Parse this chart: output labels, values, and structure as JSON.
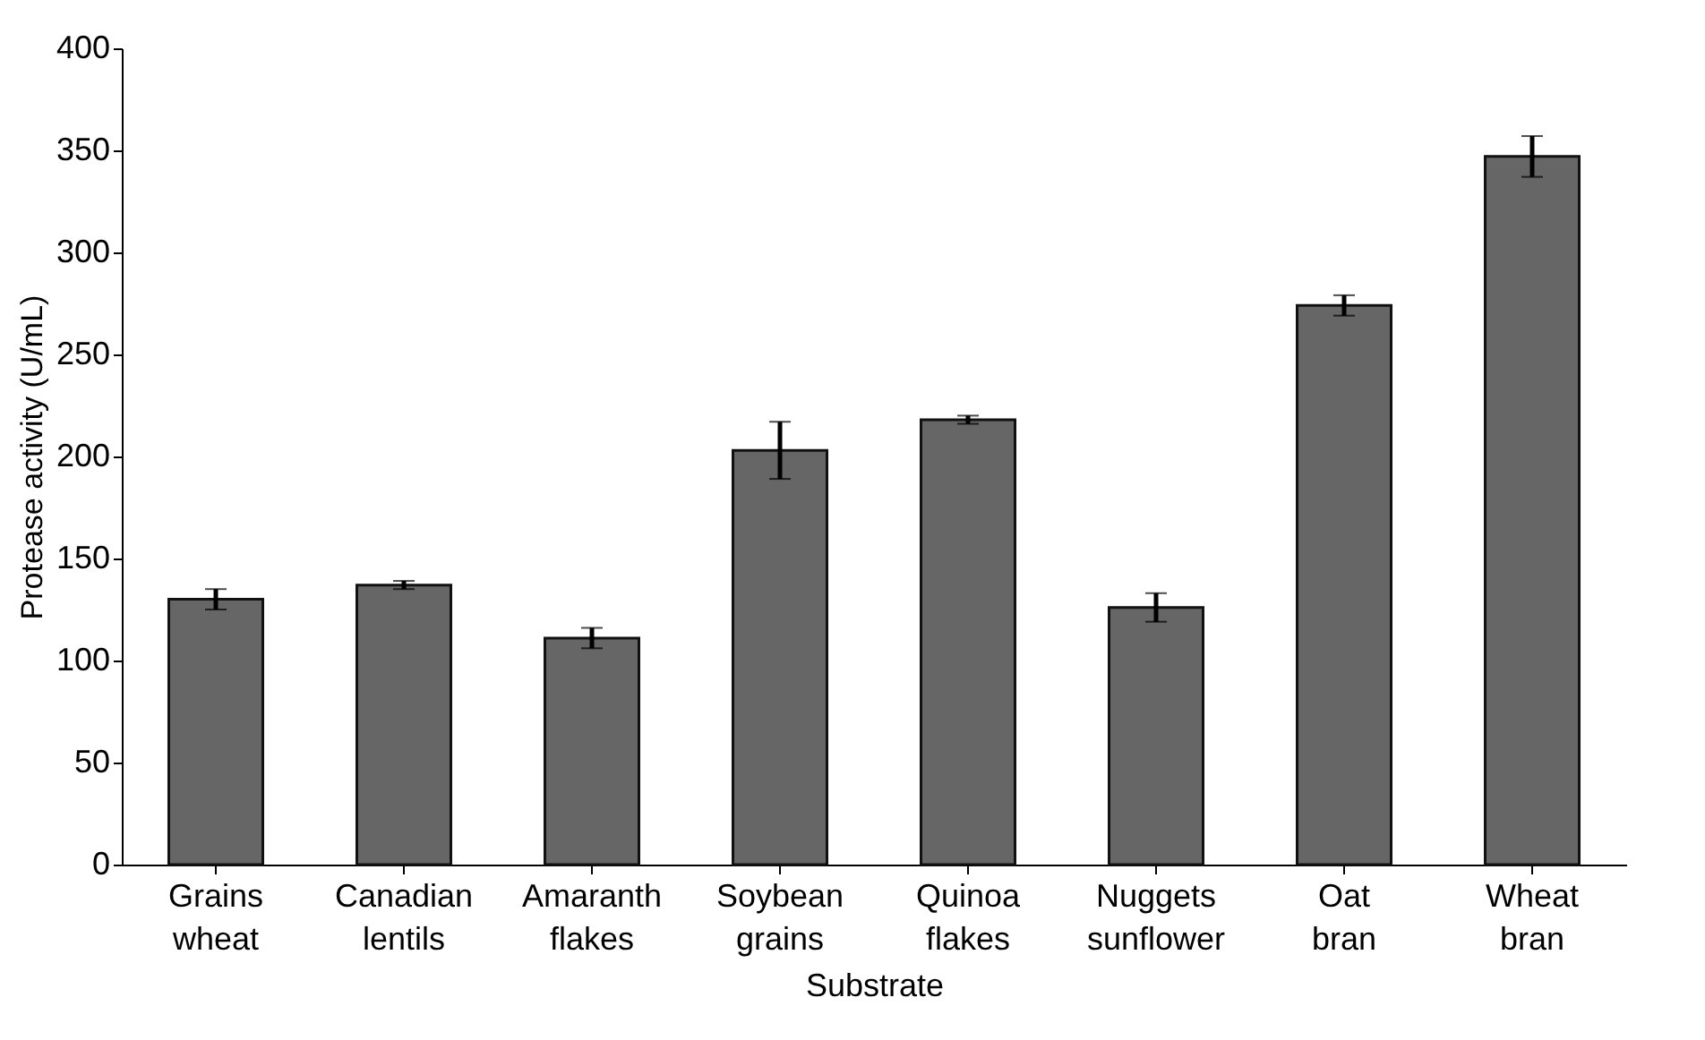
{
  "chart_data": {
    "type": "bar",
    "xlabel": "Substrate",
    "ylabel": "Protease activity (U/mL)",
    "categories": [
      "Grains wheat",
      "Canadian lentils",
      "Amaranth flakes",
      "Soybean grains",
      "Quinoa flakes",
      "Nuggets sunflower",
      "Oat bran",
      "Wheat bran"
    ],
    "values": [
      130,
      137,
      111,
      203,
      218,
      126,
      274,
      347
    ],
    "errors": [
      5,
      2,
      5,
      14,
      2,
      7,
      5,
      10
    ],
    "color": "#666666",
    "ylim": [
      0,
      400
    ],
    "yticks": [
      0,
      50,
      100,
      150,
      200,
      250,
      300,
      350,
      400
    ],
    "grid": false
  }
}
